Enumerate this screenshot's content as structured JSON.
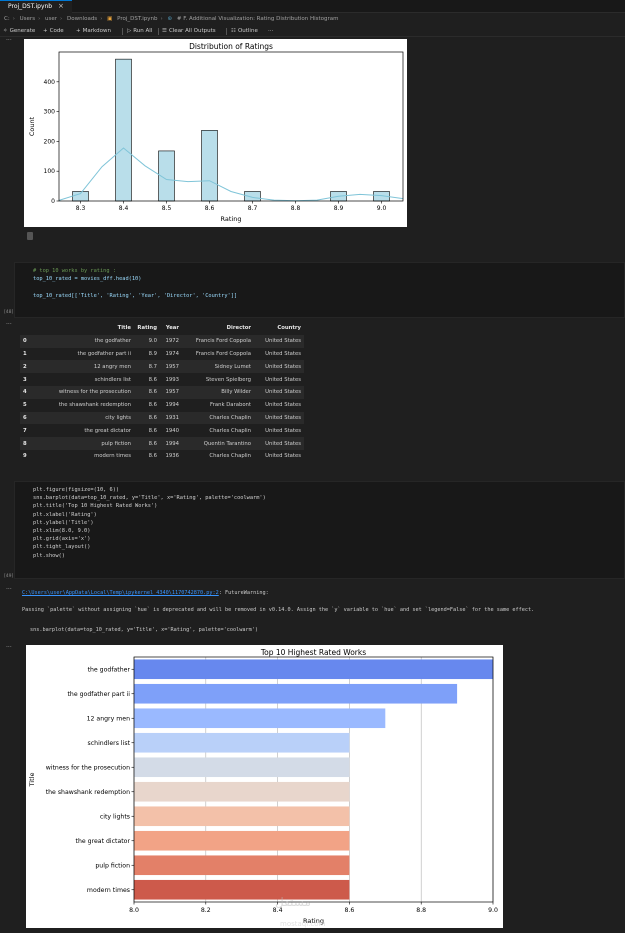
{
  "tab": {
    "title": "Proj_DST.ipynb",
    "close": "×"
  },
  "breadcrumb": [
    "C:",
    "Users",
    "user",
    "Downloads",
    "Proj_DST.ipynb",
    "# F. Additional Visualization: Rating Distribution Histogram"
  ],
  "toolbar": {
    "generate": "Generate",
    "code": "Code",
    "markdown": "Markdown",
    "run_all": "Run All",
    "clear_outputs": "Clear All Outputs",
    "outline": "Outline",
    "more": "···"
  },
  "cell_dots": "···",
  "exec_counts": {
    "cell2": "[48]",
    "cell3": "[49]"
  },
  "code_cell_1": {
    "comment": "# top 10 works by rating :",
    "line1": "top_10_rated = movies_dff.head(10)",
    "line2": "top_10_rated[['Title', 'Rating', 'Year', 'Director', 'Country']]"
  },
  "code_cell_2": [
    "plt.figure(figsize=(10, 6))",
    "sns.barplot(data=top_10_rated, y='Title', x='Rating', palette='coolwarm')",
    "plt.title('Top 10 Highest Rated Works')",
    "plt.xlabel('Rating')",
    "plt.ylabel('Title')",
    "plt.xlim(8.0, 9.0)",
    "plt.grid(axis='x')",
    "plt.tight_layout()",
    "plt.show()"
  ],
  "table": {
    "headers": [
      "",
      "Title",
      "Rating",
      "Year",
      "Director",
      "Country"
    ],
    "rows": [
      [
        "0",
        "the godfather",
        "9.0",
        "1972",
        "Francis Ford Coppola",
        "United States"
      ],
      [
        "1",
        "the godfather part ii",
        "8.9",
        "1974",
        "Francis Ford Coppola",
        "United States"
      ],
      [
        "2",
        "12 angry men",
        "8.7",
        "1957",
        "Sidney Lumet",
        "United States"
      ],
      [
        "3",
        "schindlers list",
        "8.6",
        "1993",
        "Steven Spielberg",
        "United States"
      ],
      [
        "4",
        "witness for the prosecution",
        "8.6",
        "1957",
        "Billy Wilder",
        "United States"
      ],
      [
        "5",
        "the shawshank redemption",
        "8.6",
        "1994",
        "Frank Darabont",
        "United States"
      ],
      [
        "6",
        "city lights",
        "8.6",
        "1931",
        "Charles Chaplin",
        "United States"
      ],
      [
        "7",
        "the great dictator",
        "8.6",
        "1940",
        "Charles Chaplin",
        "United States"
      ],
      [
        "8",
        "pulp fiction",
        "8.6",
        "1994",
        "Quentin Tarantino",
        "United States"
      ],
      [
        "9",
        "modern times",
        "8.6",
        "1936",
        "Charles Chaplin",
        "United States"
      ]
    ]
  },
  "warning": {
    "path": "C:\\Users\\user\\AppData\\Local\\Temp\\ipykernel_4340\\1170742870.py:2",
    "label": ": FutureWarning:",
    "message": "Passing `palette` without assigning `hue` is deprecated and will be removed in v0.14.0. Assign the `y` variable to `hue` and set `legend=False` for the same effect.",
    "code": "sns.barplot(data=top_10_rated, y='Title', x='Rating', palette='coolwarm')"
  },
  "watermark": {
    "big": "مستقل",
    "small": "mostaql.com"
  },
  "chart_data": [
    {
      "type": "bar",
      "title": "Distribution of Ratings",
      "xlabel": "Rating",
      "ylabel": "Count",
      "xlim": [
        8.25,
        9.05
      ],
      "ylim": [
        0,
        500
      ],
      "xticks": [
        "8.3",
        "8.4",
        "8.5",
        "8.6",
        "8.7",
        "8.8",
        "8.9",
        "9.0"
      ],
      "yticks": [
        "0",
        "100",
        "200",
        "300",
        "400"
      ],
      "bins": [
        8.3,
        8.4,
        8.5,
        8.6,
        8.7,
        8.9,
        9.0
      ],
      "values": [
        32,
        476,
        168,
        237,
        32,
        32,
        32
      ],
      "kde": [
        [
          8.25,
          2
        ],
        [
          8.3,
          25
        ],
        [
          8.35,
          115
        ],
        [
          8.4,
          178
        ],
        [
          8.45,
          118
        ],
        [
          8.5,
          72
        ],
        [
          8.55,
          65
        ],
        [
          8.6,
          68
        ],
        [
          8.65,
          32
        ],
        [
          8.7,
          12
        ],
        [
          8.75,
          3
        ],
        [
          8.8,
          1
        ],
        [
          8.85,
          3
        ],
        [
          8.9,
          16
        ],
        [
          8.95,
          22
        ],
        [
          9.0,
          18
        ],
        [
          9.05,
          8
        ]
      ],
      "bar_color": "#add8e6",
      "kde_color": "#7fc4d8",
      "grid": false
    },
    {
      "type": "bar",
      "orientation": "horizontal",
      "title": "Top 10 Highest Rated Works",
      "xlabel": "Rating",
      "ylabel": "Title",
      "xlim": [
        8.0,
        9.0
      ],
      "xticks": [
        "8.0",
        "8.2",
        "8.4",
        "8.6",
        "8.8",
        "9.0"
      ],
      "categories": [
        "the godfather",
        "the godfather part ii",
        "12 angry men",
        "schindlers list",
        "witness for the prosecution",
        "the shawshank redemption",
        "city lights",
        "the great dictator",
        "pulp fiction",
        "modern times"
      ],
      "values": [
        9.0,
        8.9,
        8.7,
        8.6,
        8.6,
        8.6,
        8.6,
        8.6,
        8.6,
        8.6
      ],
      "colors": [
        "#6788ee",
        "#7ea0f9",
        "#9ab9ff",
        "#b9d0f9",
        "#d3dbe7",
        "#e8d6cc",
        "#f3c1a9",
        "#f2a386",
        "#e38068",
        "#cd5a4b"
      ],
      "grid": "x"
    }
  ]
}
